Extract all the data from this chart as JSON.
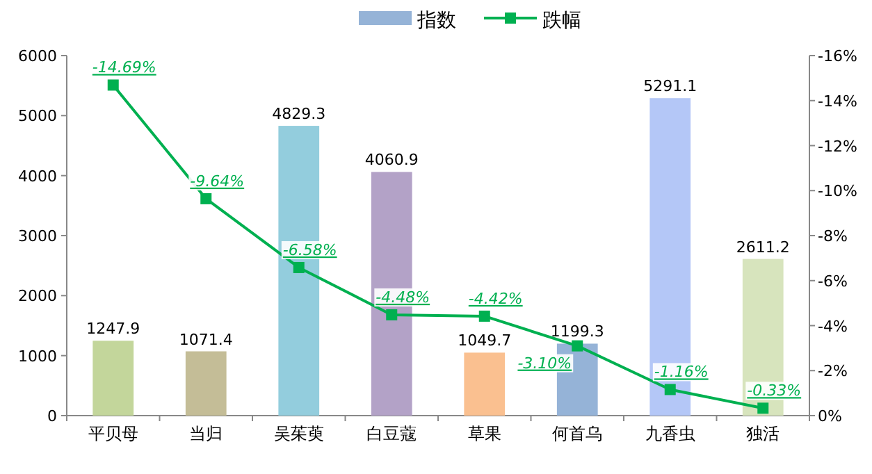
{
  "chart_data": {
    "type": "bar",
    "categories": [
      "平贝母",
      "当归",
      "吴茱萸",
      "白豆蔻",
      "草果",
      "何首乌",
      "九香虫",
      "独活"
    ],
    "series": [
      {
        "name": "指数",
        "color": "#95b3d7",
        "colors": [
          "#c3d69b",
          "#c4bd97",
          "#93cddd",
          "#b3a2c7",
          "#fac090",
          "#95b3d7",
          "#b4c7f7",
          "#d7e4bd"
        ],
        "values": [
          1247.9,
          1071.4,
          4829.3,
          4060.9,
          1049.7,
          1199.3,
          5291.1,
          2611.2
        ],
        "value_labels": [
          "1247.9",
          "1071.4",
          "4829.3",
          "4060.9",
          "1049.7",
          "1199.3",
          "5291.1",
          "2611.2"
        ]
      },
      {
        "name": "跌幅",
        "type": "line",
        "axis": "y2",
        "color": "#00b050",
        "marker": "square",
        "values": [
          -14.69,
          -9.64,
          -6.58,
          -4.48,
          -4.42,
          -3.1,
          -1.16,
          -0.33
        ],
        "value_labels": [
          "-14.69%",
          "-9.64%",
          "-6.58%",
          "-4.48%",
          "-4.42%",
          "-3.10%",
          "-1.16%",
          "-0.33%"
        ]
      }
    ],
    "ylim": [
      0,
      6000
    ],
    "yticks": [
      0,
      1000,
      2000,
      3000,
      4000,
      5000,
      6000
    ],
    "y2lim": [
      0,
      -16
    ],
    "y2ticks": [
      {
        "value": 0,
        "label": "0%"
      },
      {
        "value": -2,
        "label": "-2%"
      },
      {
        "value": -4,
        "label": "-4%"
      },
      {
        "value": -6,
        "label": "-6%"
      },
      {
        "value": -8,
        "label": "-8%"
      },
      {
        "value": -10,
        "label": "-10%"
      },
      {
        "value": -12,
        "label": "-12%"
      },
      {
        "value": -14,
        "label": "-14%"
      },
      {
        "value": -16,
        "label": "-16%"
      }
    ],
    "legend": "top",
    "grid": false
  }
}
